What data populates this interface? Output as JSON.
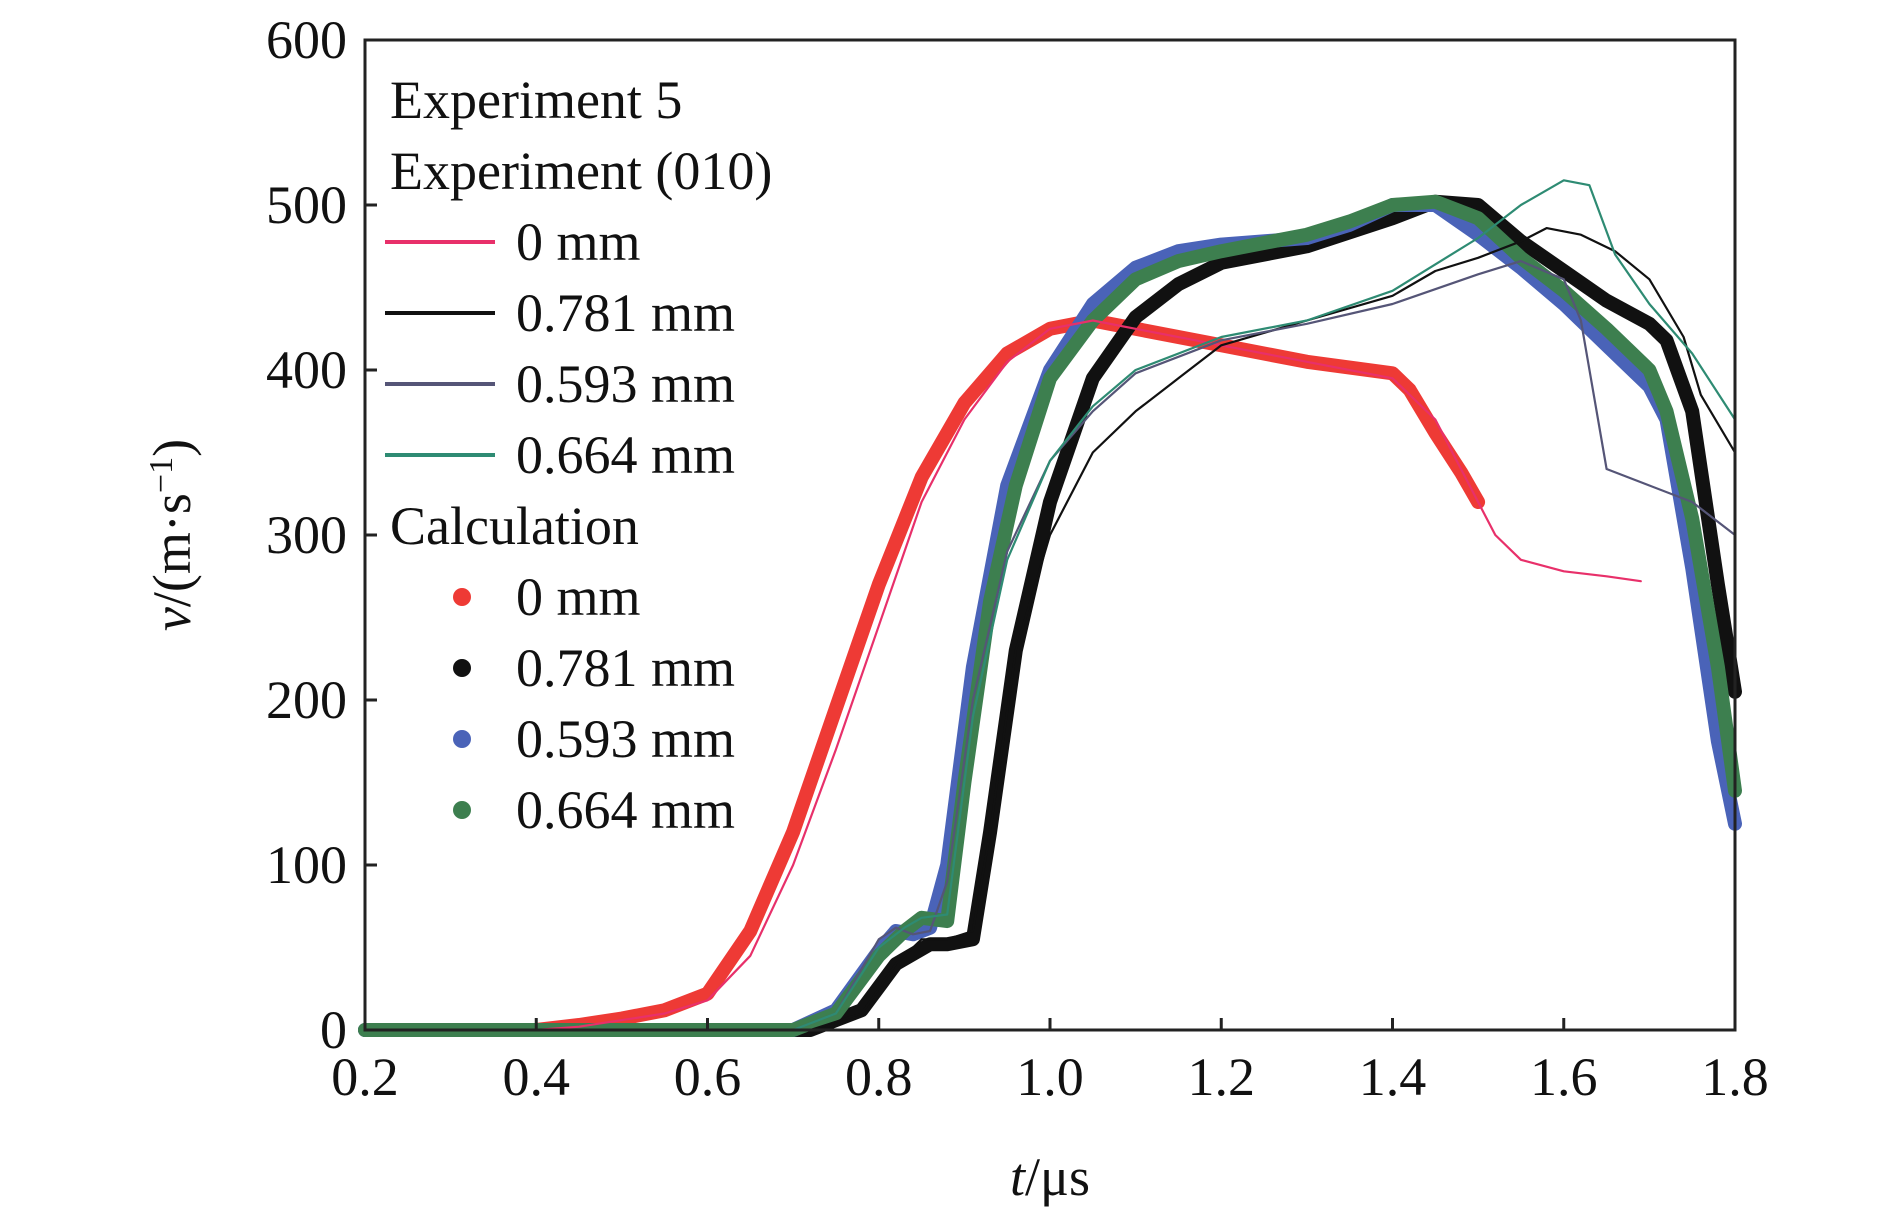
{
  "chart_data": {
    "type": "line",
    "xlabel": {
      "var": "t",
      "unit": "/μs"
    },
    "ylabel": {
      "var": "v",
      "unit_pre": "/(m·s",
      "sup": "−1",
      "unit_post": ")"
    },
    "xlim": [
      0.2,
      1.8
    ],
    "ylim": [
      0,
      600
    ],
    "xticks": [
      0.2,
      0.4,
      0.6,
      0.8,
      1.0,
      1.2,
      1.4,
      1.6,
      1.8
    ],
    "xtick_labels": [
      "0.2",
      "0.4",
      "0.6",
      "0.8",
      "1.0",
      "1.2",
      "1.4",
      "1.6",
      "1.8"
    ],
    "yticks": [
      0,
      100,
      200,
      300,
      400,
      500,
      600
    ],
    "ytick_labels": [
      "0",
      "100",
      "200",
      "300",
      "400",
      "500",
      "600"
    ],
    "grid": false,
    "legend": {
      "placement": "top-left",
      "entries": [
        {
          "kind": "header",
          "text": "Experiment 5"
        },
        {
          "kind": "header",
          "text": "Experiment (010)"
        },
        {
          "kind": "line",
          "text": "0 mm",
          "color": "#e8306a"
        },
        {
          "kind": "line",
          "text": "0.781 mm",
          "color": "#111111"
        },
        {
          "kind": "line",
          "text": "0.593 mm",
          "color": "#555577"
        },
        {
          "kind": "line",
          "text": "0.664 mm",
          "color": "#2e8b73"
        },
        {
          "kind": "header",
          "text": "Calculation"
        },
        {
          "kind": "dot",
          "text": "0 mm",
          "color": "#ee3a35"
        },
        {
          "kind": "dot",
          "text": "0.781 mm",
          "color": "#111111"
        },
        {
          "kind": "dot",
          "text": "0.593 mm",
          "color": "#4a63b8"
        },
        {
          "kind": "dot",
          "text": "0.664 mm",
          "color": "#3d7f4f"
        }
      ]
    },
    "series": [
      {
        "group": "Experiment",
        "name": "0 mm",
        "style": "thin",
        "color": "#e8306a",
        "x": [
          0.2,
          0.4,
          0.45,
          0.5,
          0.55,
          0.6,
          0.65,
          0.7,
          0.75,
          0.8,
          0.85,
          0.9,
          0.95,
          1.0,
          1.05,
          1.1,
          1.2,
          1.3,
          1.4,
          1.45,
          1.5,
          1.52,
          1.55,
          1.6,
          1.65,
          1.69
        ],
        "y": [
          0,
          0,
          2,
          6,
          10,
          18,
          45,
          100,
          170,
          245,
          320,
          370,
          405,
          425,
          430,
          425,
          415,
          405,
          395,
          370,
          320,
          300,
          285,
          278,
          275,
          272
        ]
      },
      {
        "group": "Experiment",
        "name": "0.781 mm",
        "style": "thin",
        "color": "#111111",
        "x": [
          0.2,
          0.72,
          0.78,
          0.82,
          0.85,
          0.88,
          0.91,
          0.93,
          0.96,
          1.0,
          1.05,
          1.1,
          1.15,
          1.2,
          1.3,
          1.4,
          1.45,
          1.5,
          1.55,
          1.58,
          1.62,
          1.66,
          1.7,
          1.74,
          1.76,
          1.8
        ],
        "y": [
          0,
          0,
          10,
          40,
          55,
          55,
          60,
          120,
          230,
          300,
          350,
          375,
          395,
          415,
          430,
          445,
          460,
          468,
          478,
          486,
          482,
          472,
          455,
          420,
          385,
          350
        ]
      },
      {
        "group": "Experiment",
        "name": "0.593 mm",
        "style": "thin",
        "color": "#555577",
        "x": [
          0.2,
          0.7,
          0.75,
          0.8,
          0.82,
          0.84,
          0.86,
          0.88,
          0.91,
          0.95,
          1.0,
          1.05,
          1.1,
          1.2,
          1.3,
          1.4,
          1.5,
          1.55,
          1.6,
          1.62,
          1.65,
          1.7,
          1.75,
          1.8
        ],
        "y": [
          0,
          0,
          10,
          55,
          62,
          58,
          60,
          90,
          200,
          290,
          345,
          375,
          398,
          418,
          428,
          440,
          458,
          466,
          455,
          430,
          340,
          330,
          320,
          300
        ]
      },
      {
        "group": "Experiment",
        "name": "0.664 mm",
        "style": "thin",
        "color": "#2e8b73",
        "x": [
          0.2,
          0.7,
          0.75,
          0.8,
          0.83,
          0.85,
          0.88,
          0.91,
          0.95,
          1.0,
          1.05,
          1.1,
          1.2,
          1.3,
          1.4,
          1.5,
          1.55,
          1.6,
          1.63,
          1.66,
          1.7,
          1.75,
          1.8
        ],
        "y": [
          0,
          0,
          10,
          50,
          62,
          68,
          70,
          190,
          285,
          345,
          378,
          400,
          420,
          430,
          448,
          480,
          500,
          515,
          512,
          470,
          440,
          410,
          370
        ]
      },
      {
        "group": "Calculation",
        "name": "0 mm",
        "style": "thick",
        "color": "#ee3a35",
        "x": [
          0.4,
          0.45,
          0.5,
          0.55,
          0.6,
          0.65,
          0.7,
          0.75,
          0.8,
          0.85,
          0.9,
          0.95,
          1.0,
          1.05,
          1.1,
          1.2,
          1.3,
          1.4,
          1.42,
          1.45,
          1.48,
          1.5
        ],
        "y": [
          0,
          3,
          7,
          12,
          22,
          60,
          120,
          195,
          270,
          335,
          380,
          410,
          425,
          430,
          425,
          415,
          405,
          398,
          388,
          362,
          338,
          320
        ]
      },
      {
        "group": "Calculation",
        "name": "0.781 mm",
        "style": "thick",
        "color": "#111111",
        "x": [
          0.2,
          0.72,
          0.78,
          0.82,
          0.86,
          0.88,
          0.91,
          0.93,
          0.96,
          1.0,
          1.05,
          1.1,
          1.15,
          1.2,
          1.3,
          1.4,
          1.45,
          1.5,
          1.55,
          1.6,
          1.65,
          1.7,
          1.72,
          1.75,
          1.78,
          1.8
        ],
        "y": [
          0,
          0,
          12,
          40,
          52,
          52,
          55,
          120,
          230,
          320,
          395,
          432,
          452,
          465,
          475,
          492,
          502,
          500,
          478,
          460,
          442,
          428,
          418,
          375,
          270,
          205
        ]
      },
      {
        "group": "Calculation",
        "name": "0.593 mm",
        "style": "thick",
        "color": "#4a63b8",
        "x": [
          0.2,
          0.7,
          0.75,
          0.8,
          0.82,
          0.84,
          0.86,
          0.88,
          0.91,
          0.95,
          1.0,
          1.05,
          1.1,
          1.15,
          1.2,
          1.3,
          1.35,
          1.4,
          1.45,
          1.5,
          1.55,
          1.6,
          1.65,
          1.7,
          1.72,
          1.75,
          1.78,
          1.8
        ],
        "y": [
          0,
          0,
          12,
          48,
          60,
          58,
          62,
          100,
          220,
          330,
          400,
          440,
          462,
          472,
          476,
          480,
          488,
          500,
          500,
          482,
          462,
          440,
          415,
          390,
          370,
          280,
          175,
          125
        ]
      },
      {
        "group": "Calculation",
        "name": "0.664 mm",
        "style": "thick",
        "color": "#3d7f4f",
        "x": [
          0.2,
          0.7,
          0.75,
          0.8,
          0.83,
          0.85,
          0.88,
          0.9,
          0.93,
          0.96,
          1.0,
          1.05,
          1.1,
          1.15,
          1.2,
          1.3,
          1.35,
          1.4,
          1.45,
          1.5,
          1.55,
          1.6,
          1.65,
          1.7,
          1.72,
          1.75,
          1.78,
          1.8
        ],
        "y": [
          0,
          0,
          10,
          45,
          60,
          68,
          66,
          150,
          260,
          330,
          395,
          430,
          455,
          466,
          472,
          482,
          490,
          500,
          502,
          492,
          468,
          448,
          425,
          400,
          375,
          310,
          220,
          145
        ]
      }
    ]
  }
}
